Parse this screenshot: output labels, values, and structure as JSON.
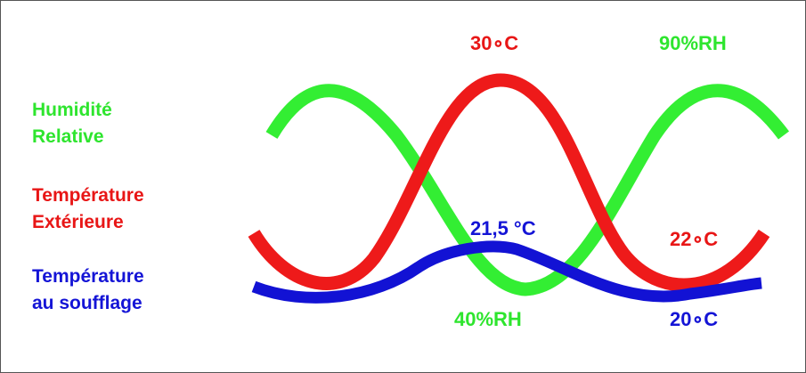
{
  "legend": {
    "humidity": [
      "Humidité",
      "Relative"
    ],
    "outdoor": [
      "Température",
      "Extérieure"
    ],
    "supply": [
      "Température",
      "au soufflage"
    ]
  },
  "annotations": {
    "outdoor_max": "30∘C",
    "humidity_max": "90%RH",
    "supply_max": "21,5 °C",
    "outdoor_min": "22∘C",
    "humidity_min": "40%RH",
    "supply_min": "20∘C"
  },
  "colors": {
    "humidity": "#33ee33",
    "outdoor": "#ee1a1a",
    "supply": "#1212d4"
  }
}
